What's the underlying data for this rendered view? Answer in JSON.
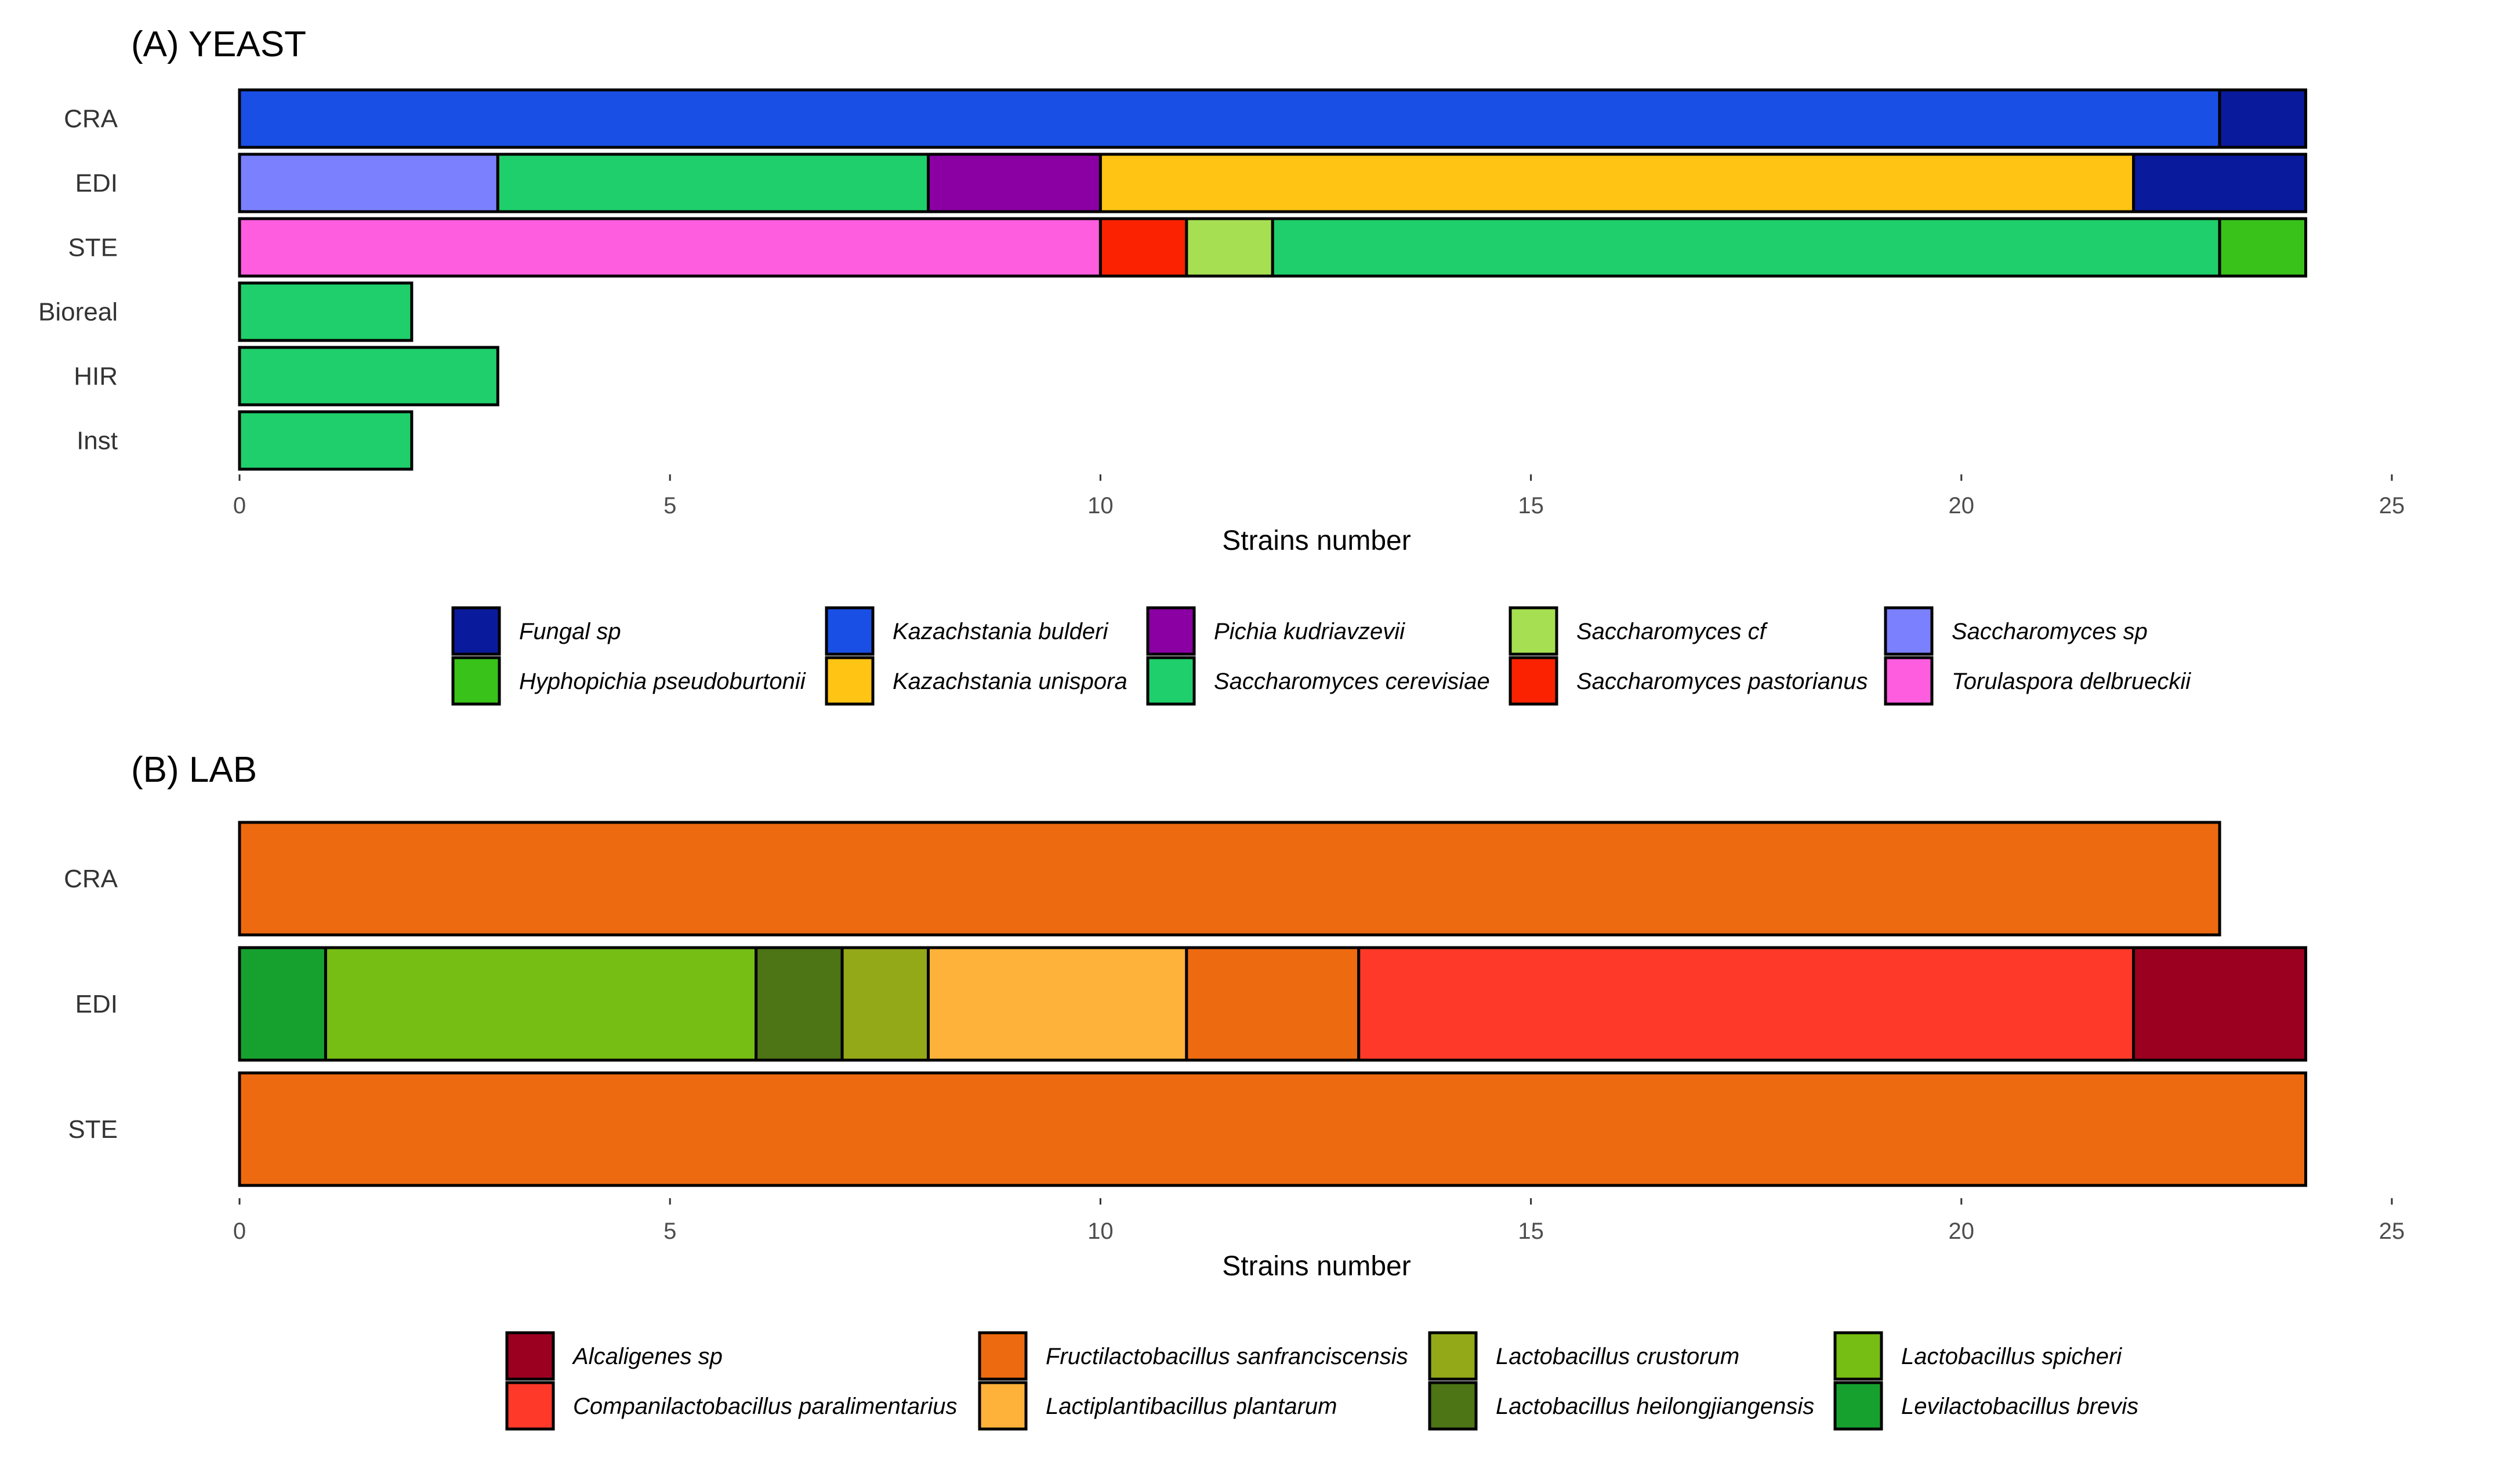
{
  "chart_data": [
    {
      "type": "bar",
      "orientation": "horizontal",
      "stacked": true,
      "title": "(A) YEAST",
      "xlabel": "Strains number",
      "ylabel": "",
      "xlim": [
        0,
        25
      ],
      "xticks": [
        0,
        5,
        10,
        15,
        20,
        25
      ],
      "categories": [
        "CRA",
        "EDI",
        "STE",
        "Bioreal",
        "HIR",
        "Inst"
      ],
      "colors": {
        "Fungal sp": "#0a1a9c",
        "Hyphopichia pseudoburtonii": "#38c21a",
        "Kazachstania bulderi": "#1a4fe6",
        "Kazachstania unispora": "#ffc414",
        "Pichia kudriavzevii": "#8a00a3",
        "Saccharomyces cerevisiae": "#1fcf6b",
        "Saccharomyces cf": "#a6e052",
        "Saccharomyces pastorianus": "#fa2200",
        "Saccharomyces sp": "#7b80ff",
        "Torulaspora delbrueckii": "#ff5ddf"
      },
      "stacks": {
        "CRA": [
          [
            "Kazachstania bulderi",
            23
          ],
          [
            "Fungal sp",
            1
          ]
        ],
        "EDI": [
          [
            "Saccharomyces sp",
            3
          ],
          [
            "Saccharomyces cerevisiae",
            5
          ],
          [
            "Pichia kudriavzevii",
            2
          ],
          [
            "Kazachstania unispora",
            12
          ],
          [
            "Fungal sp",
            2
          ]
        ],
        "STE": [
          [
            "Torulaspora delbrueckii",
            10
          ],
          [
            "Saccharomyces pastorianus",
            1
          ],
          [
            "Saccharomyces cf",
            1
          ],
          [
            "Saccharomyces cerevisiae",
            11
          ],
          [
            "Hyphopichia pseudoburtonii",
            1
          ]
        ],
        "Bioreal": [
          [
            "Saccharomyces cerevisiae",
            2
          ]
        ],
        "HIR": [
          [
            "Saccharomyces cerevisiae",
            3
          ]
        ],
        "Inst": [
          [
            "Saccharomyces cerevisiae",
            2
          ]
        ]
      },
      "legend": {
        "position": "bottom",
        "columns": [
          [
            "Fungal sp",
            "Hyphopichia pseudoburtonii"
          ],
          [
            "Kazachstania bulderi",
            "Kazachstania unispora"
          ],
          [
            "Pichia kudriavzevii",
            "Saccharomyces cerevisiae"
          ],
          [
            "Saccharomyces cf",
            "Saccharomyces pastorianus"
          ],
          [
            "Saccharomyces sp",
            "Torulaspora delbrueckii"
          ]
        ]
      }
    },
    {
      "type": "bar",
      "orientation": "horizontal",
      "stacked": true,
      "title": "(B) LAB",
      "xlabel": "Strains number",
      "ylabel": "",
      "xlim": [
        0,
        25
      ],
      "xticks": [
        0,
        5,
        10,
        15,
        20,
        25
      ],
      "categories": [
        "CRA",
        "EDI",
        "STE"
      ],
      "colors": {
        "Alcaligenes sp": "#9c0020",
        "Companilactobacillus paralimentarius": "#ff392a",
        "Fructilactobacillus sanfranciscensis": "#ee6a10",
        "Lactiplantibacillus plantarum": "#ffb23a",
        "Lactobacillus crustorum": "#93a918",
        "Lactobacillus heilongjiangensis": "#4d7415",
        "Lactobacillus spicheri": "#76bd14",
        "Levilactobacillus brevis": "#16a12f"
      },
      "stacks": {
        "CRA": [
          [
            "Fructilactobacillus sanfranciscensis",
            23
          ]
        ],
        "EDI": [
          [
            "Levilactobacillus brevis",
            1
          ],
          [
            "Lactobacillus spicheri",
            5
          ],
          [
            "Lactobacillus heilongjiangensis",
            1
          ],
          [
            "Lactobacillus crustorum",
            1
          ],
          [
            "Lactiplantibacillus plantarum",
            3
          ],
          [
            "Fructilactobacillus sanfranciscensis",
            2
          ],
          [
            "Companilactobacillus paralimentarius",
            9
          ],
          [
            "Alcaligenes sp",
            2
          ]
        ],
        "STE": [
          [
            "Fructilactobacillus sanfranciscensis",
            24
          ]
        ]
      },
      "legend": {
        "position": "bottom",
        "columns": [
          [
            "Alcaligenes sp",
            "Companilactobacillus paralimentarius"
          ],
          [
            "Fructilactobacillus sanfranciscensis",
            "Lactiplantibacillus plantarum"
          ],
          [
            "Lactobacillus crustorum",
            "Lactobacillus heilongjiangensis"
          ],
          [
            "Lactobacillus spicheri",
            "Levilactobacillus brevis"
          ]
        ]
      }
    }
  ]
}
